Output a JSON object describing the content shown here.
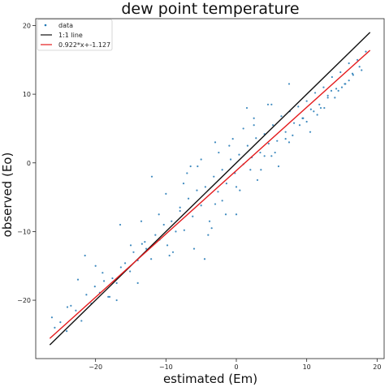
{
  "chart_data": {
    "type": "scatter",
    "title": "dew point temperature",
    "xlabel": "estimated (Em)",
    "ylabel": "observed (Eo)",
    "xlim": [
      -28.5,
      21
    ],
    "ylim": [
      -28.5,
      21
    ],
    "xticks": [
      -20,
      -10,
      0,
      10,
      20
    ],
    "yticks": [
      -20,
      -10,
      0,
      10,
      20
    ],
    "grid": false,
    "legend": {
      "placement": "top-left",
      "entries": [
        {
          "label": "data",
          "color": "#1f77b4",
          "marker": "dot"
        },
        {
          "label": "1:1 line",
          "color": "#111111",
          "marker": "line"
        },
        {
          "label": "0.922*x+-1.127",
          "color": "#e41a1c",
          "marker": "line"
        }
      ]
    },
    "series": [
      {
        "name": "data",
        "kind": "scatter",
        "color": "#1f77b4",
        "x": [
          -26.2,
          -25.8,
          -25.0,
          -24.1,
          -23.5,
          -22.8,
          -22.0,
          -21.3,
          -20.6,
          -20.1,
          -19.4,
          -18.8,
          -18.2,
          -17.6,
          -17.0,
          -16.4,
          -15.8,
          -15.1,
          -14.6,
          -14.0,
          -13.4,
          -12.8,
          -12.1,
          -11.5,
          -10.9,
          -10.3,
          -9.8,
          -9.2,
          -8.6,
          -8.0,
          -7.4,
          -6.8,
          -6.2,
          -5.6,
          -5.0,
          -4.4,
          -3.8,
          -3.2,
          -2.6,
          -2.0,
          -1.4,
          -0.8,
          -0.2,
          0.4,
          1.0,
          1.6,
          2.2,
          2.8,
          3.4,
          4.0,
          4.6,
          5.2,
          5.8,
          6.4,
          7.0,
          7.6,
          8.2,
          8.8,
          9.4,
          10.0,
          10.6,
          11.2,
          11.8,
          12.4,
          13.0,
          13.6,
          14.2,
          14.8,
          15.4,
          16.0,
          16.6,
          17.2,
          17.8,
          18.4,
          -21.5,
          -19.0,
          -16.5,
          -13.0,
          -10.0,
          -7.5,
          -5.0,
          -3.0,
          -1.0,
          1.0,
          3.0,
          5.0,
          7.0,
          9.0,
          11.0,
          13.0,
          15.0,
          -18.0,
          -14.0,
          -9.0,
          -6.0,
          -4.0,
          -2.0,
          0.0,
          2.0,
          4.0,
          6.0,
          8.0,
          10.0,
          12.0,
          14.0,
          16.0,
          -12.0,
          -8.0,
          -6.5,
          -3.5,
          -1.5,
          0.5,
          2.5,
          4.5,
          -20.0,
          -15.0,
          -11.0,
          -7.0,
          -4.5,
          -2.5,
          -0.5,
          1.5,
          3.5,
          5.5,
          7.5,
          9.5,
          11.5,
          13.5,
          15.5,
          17.5,
          -24.0,
          -22.5,
          -17.0,
          -13.5,
          -9.5,
          -5.5,
          -3.0,
          0.0,
          2.5,
          5.0,
          7.5,
          10.5,
          12.5,
          14.5,
          16.5
        ],
        "y": [
          -22.5,
          -24.0,
          -23.2,
          -24.5,
          -20.8,
          -21.5,
          -23.0,
          -19.2,
          -20.5,
          -18.0,
          -18.9,
          -17.2,
          -19.5,
          -16.8,
          -17.5,
          -15.2,
          -14.6,
          -15.8,
          -13.0,
          -14.2,
          -11.8,
          -12.5,
          -14.0,
          -10.5,
          -11.2,
          -9.0,
          -12.0,
          -8.5,
          -10.0,
          -6.5,
          -9.8,
          -5.2,
          -7.8,
          -4.0,
          -6.2,
          -3.5,
          -8.5,
          -2.0,
          -4.2,
          -1.0,
          -3.0,
          0.5,
          -1.5,
          1.2,
          -0.2,
          2.5,
          0.8,
          3.6,
          1.5,
          4.2,
          2.8,
          5.5,
          3.2,
          6.8,
          4.5,
          7.5,
          5.8,
          8.2,
          6.5,
          9.0,
          7.8,
          10.2,
          8.5,
          11.0,
          9.8,
          12.5,
          10.8,
          13.2,
          11.5,
          14.5,
          12.8,
          15.0,
          13.5,
          16.2,
          -13.5,
          -16.0,
          -9.0,
          -11.5,
          -4.5,
          -3.0,
          0.5,
          -6.0,
          2.5,
          5.0,
          -2.5,
          1.0,
          3.5,
          5.5,
          7.5,
          9.5,
          11.0,
          -19.5,
          -17.5,
          -13.0,
          -12.5,
          -10.5,
          -5.5,
          -3.5,
          -1.0,
          1.0,
          -0.5,
          4.0,
          6.0,
          8.0,
          9.5,
          12.0,
          -2.0,
          -7.0,
          -0.5,
          -9.5,
          -7.5,
          -4.0,
          6.5,
          8.5,
          -15.0,
          -12.0,
          -7.5,
          -1.5,
          -14.0,
          1.5,
          3.5,
          8.0,
          -1.0,
          1.5,
          3.0,
          6.5,
          7.0,
          10.5,
          11.5,
          14.0,
          -21.0,
          -17.0,
          -20.0,
          -8.5,
          -13.5,
          -0.5,
          3.0,
          -7.5,
          5.5,
          8.5,
          11.5,
          4.5,
          8.0,
          10.5,
          13.0
        ]
      },
      {
        "name": "1:1 line",
        "kind": "line",
        "color": "#111111",
        "x": [
          -26.5,
          19
        ],
        "y": [
          -26.5,
          19
        ]
      },
      {
        "name": "0.922*x+-1.127",
        "kind": "line",
        "color": "#e41a1c",
        "x": [
          -26.5,
          19
        ],
        "y": [
          -25.56,
          16.39
        ]
      }
    ]
  }
}
